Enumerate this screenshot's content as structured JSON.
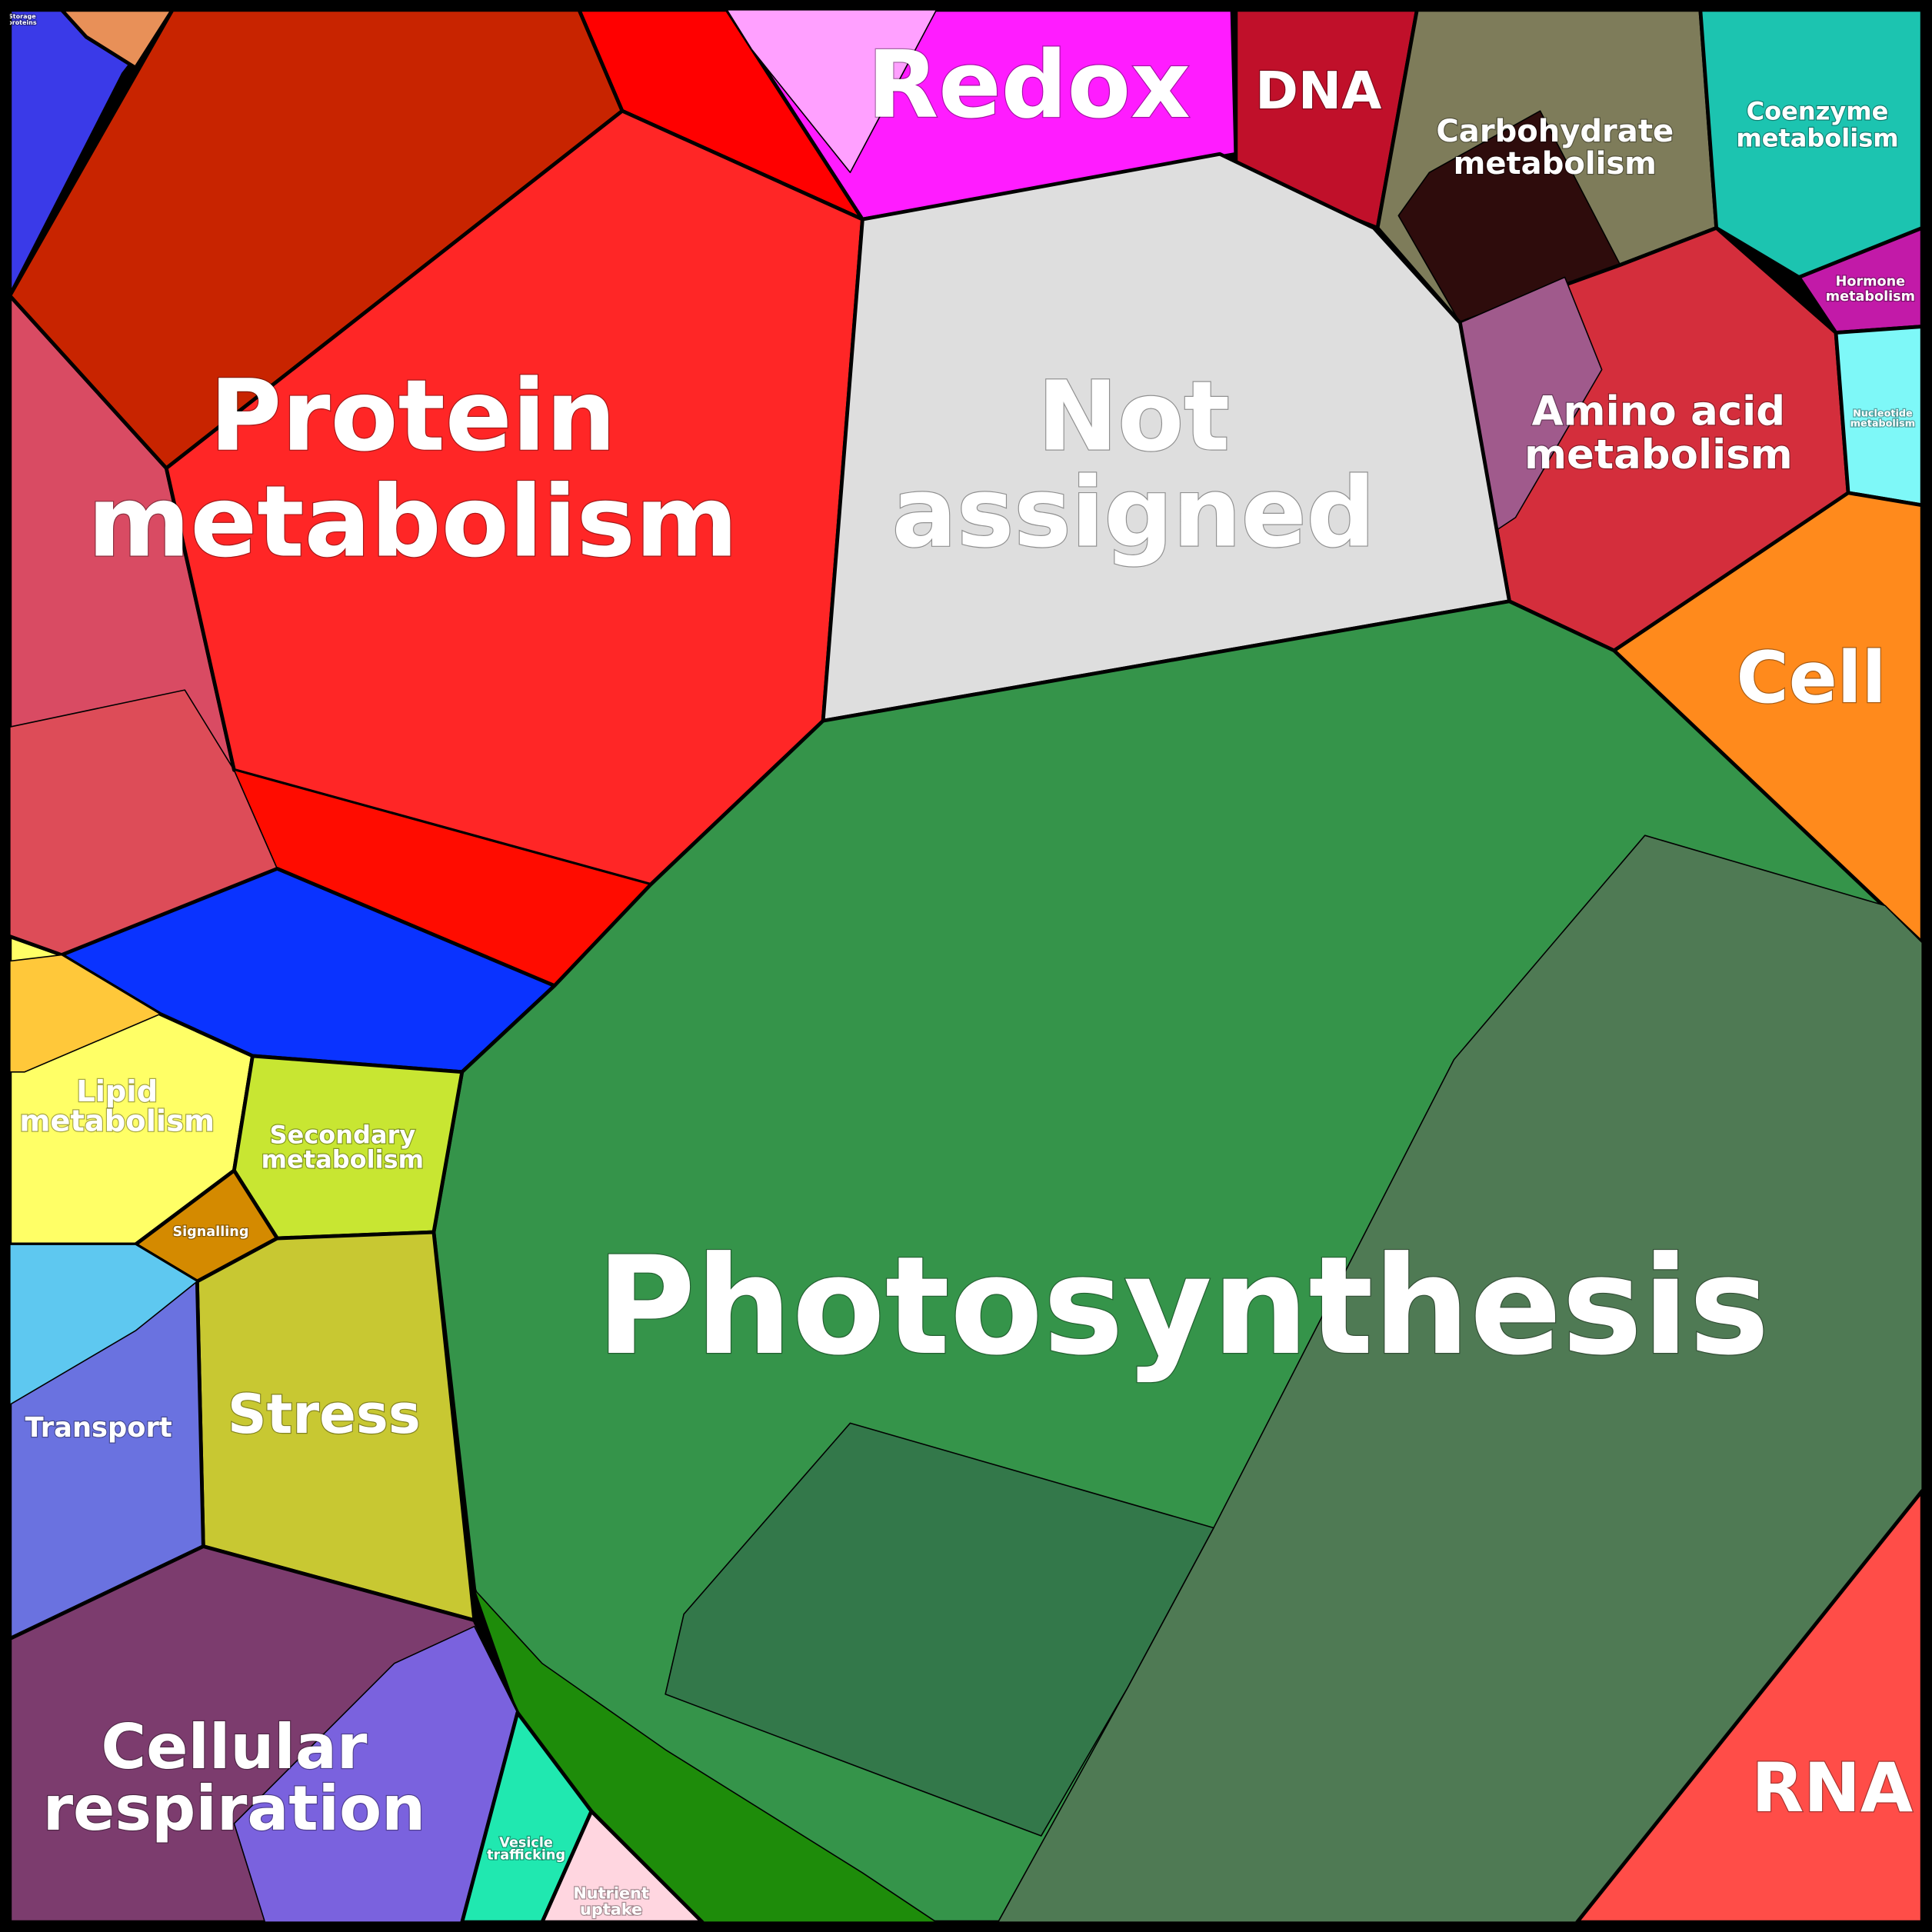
{
  "labels": [
    {
      "lines": [
        "Protein",
        "metabolism"
      ]
    },
    {
      "lines": [
        "Not",
        "assigned"
      ]
    },
    {
      "lines": [
        "Photosynthesis"
      ]
    },
    {
      "lines": [
        "Redox"
      ]
    },
    {
      "lines": [
        "DNA"
      ]
    },
    {
      "lines": [
        "Carbohydrate",
        "metabolism"
      ]
    },
    {
      "lines": [
        "Coenzyme",
        "metabolism"
      ]
    },
    {
      "lines": [
        "Hormone",
        "metabolism"
      ]
    },
    {
      "lines": [
        "Amino acid",
        "metabolism"
      ]
    },
    {
      "lines": [
        "Nucleotide",
        "metabolism"
      ]
    },
    {
      "lines": [
        "Cell"
      ]
    },
    {
      "lines": [
        "RNA"
      ]
    },
    {
      "lines": [
        "Lipid",
        "metabolism"
      ]
    },
    {
      "lines": [
        "Secondary",
        "metabolism"
      ]
    },
    {
      "lines": [
        "Signalling"
      ]
    },
    {
      "lines": [
        "Transport"
      ]
    },
    {
      "lines": [
        "Stress"
      ]
    },
    {
      "lines": [
        "Cellular",
        "respiration"
      ]
    },
    {
      "lines": [
        "Vesicle",
        "trafficking"
      ]
    },
    {
      "lines": [
        "Nutrient",
        "uptake"
      ]
    },
    {
      "lines": [
        "Storage",
        "proteins"
      ]
    }
  ]
}
